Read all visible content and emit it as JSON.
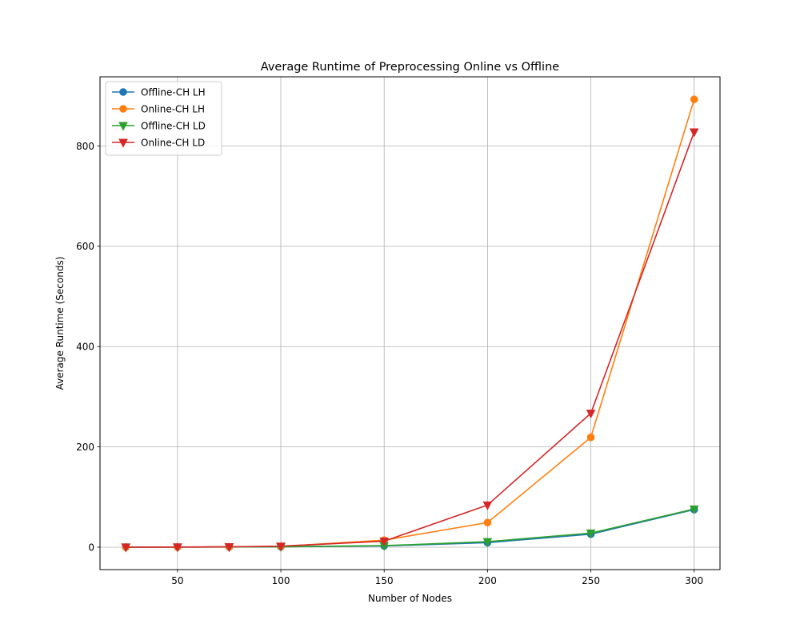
{
  "chart_data": {
    "type": "line",
    "title": "Average Runtime of Preprocessing Online vs Offline",
    "xlabel": "Number of Nodes",
    "ylabel": "Average Runtime (Seconds)",
    "x": [
      25,
      50,
      75,
      100,
      150,
      200,
      250,
      300
    ],
    "xlim": [
      12.5,
      312.5
    ],
    "ylim": [
      -44.7,
      938.0
    ],
    "xticks": [
      50,
      100,
      150,
      200,
      250,
      300
    ],
    "yticks": [
      0,
      200,
      400,
      600,
      800
    ],
    "grid": true,
    "legend_position": "top-left",
    "series": [
      {
        "name": "Offline-CH LH",
        "color": "#1f77b4",
        "marker": "circle",
        "values": [
          0.1,
          0.2,
          0.4,
          0.8,
          2.5,
          9.0,
          26.0,
          75.0
        ]
      },
      {
        "name": "Online-CH LH",
        "color": "#ff7f0e",
        "marker": "circle",
        "values": [
          0.1,
          0.3,
          0.6,
          1.5,
          14.0,
          49.0,
          219.0,
          893.0
        ]
      },
      {
        "name": "Offline-CH LD",
        "color": "#2ca02c",
        "marker": "triangle-down",
        "values": [
          0.1,
          0.2,
          0.4,
          0.9,
          3.0,
          11.0,
          28.0,
          76.0
        ]
      },
      {
        "name": "Online-CH LD",
        "color": "#d62728",
        "marker": "triangle-down",
        "values": [
          0.1,
          0.3,
          0.7,
          2.0,
          12.0,
          84.0,
          267.0,
          828.0
        ]
      }
    ]
  }
}
